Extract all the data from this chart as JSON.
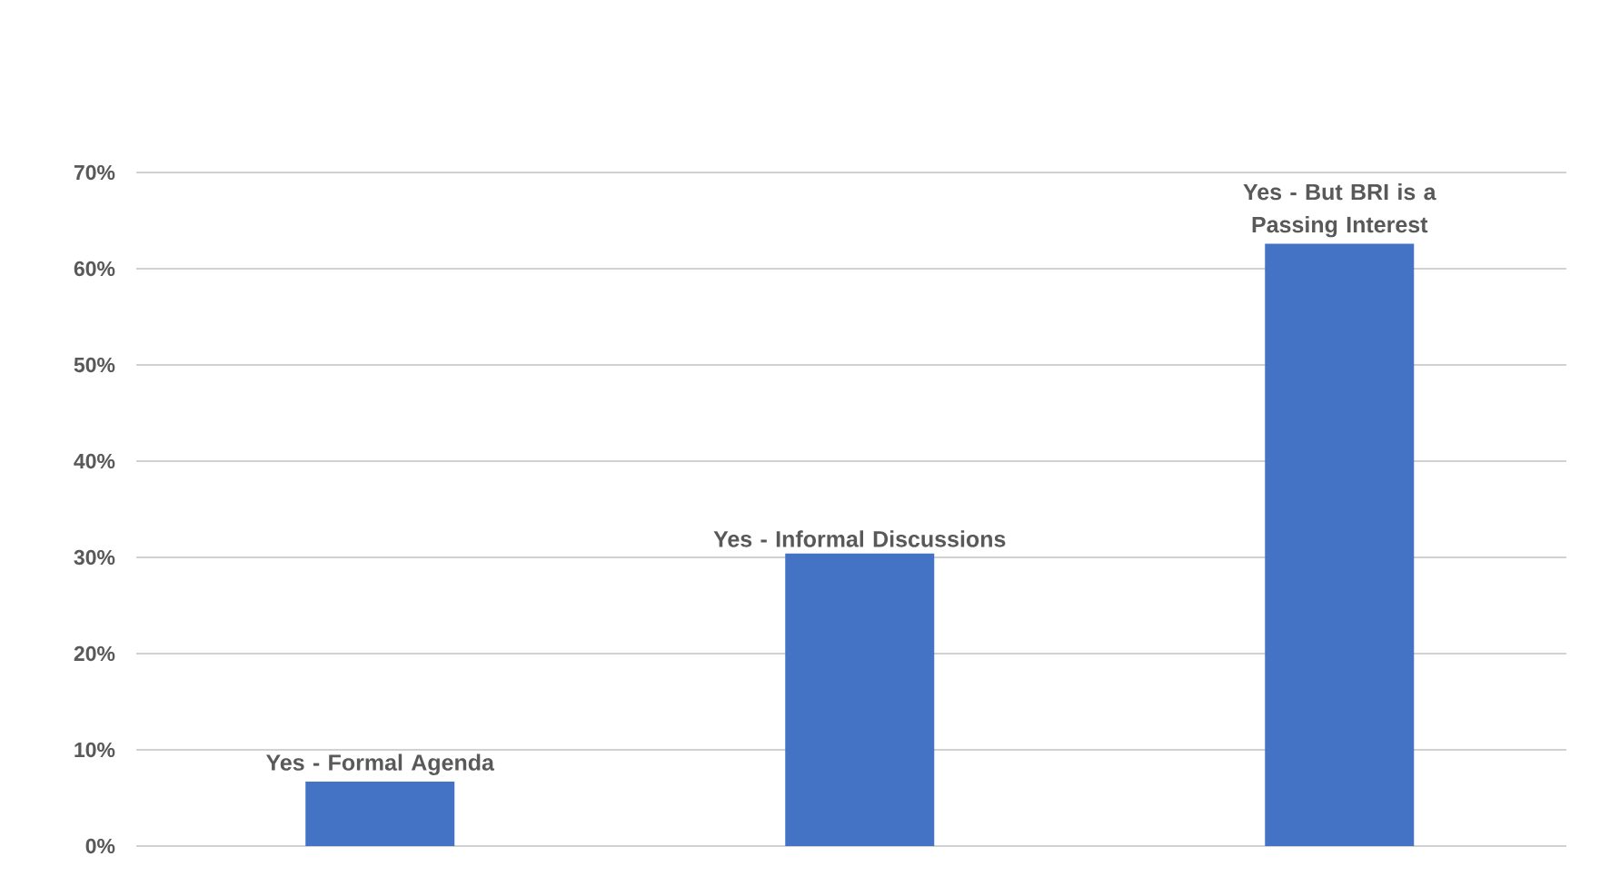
{
  "chart_data": {
    "type": "bar",
    "categories": [
      "Yes - Formal Agenda",
      "Yes - Informal Discussions",
      "Yes - But BRI is a Passing Interest"
    ],
    "values": [
      6.7,
      30.4,
      62.6
    ],
    "color": "#4472c4",
    "ylim": [
      0,
      70
    ],
    "yticks": [
      {
        "value": 0,
        "label": "0%"
      },
      {
        "value": 10,
        "label": "10%"
      },
      {
        "value": 20,
        "label": "20%"
      },
      {
        "value": 30,
        "label": "30%"
      },
      {
        "value": 40,
        "label": "40%"
      },
      {
        "value": 50,
        "label": "50%"
      },
      {
        "value": 60,
        "label": "60%"
      },
      {
        "value": 70,
        "label": "70%"
      }
    ],
    "grid": "y"
  }
}
